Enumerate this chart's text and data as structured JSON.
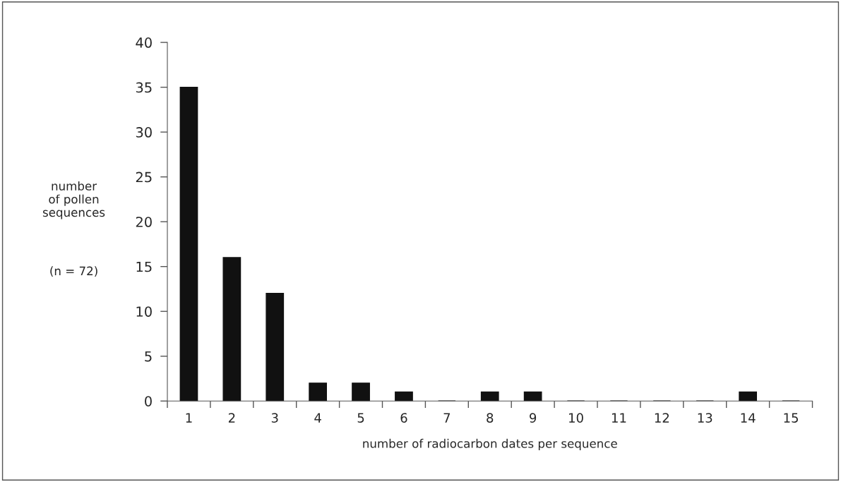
{
  "chart_data": {
    "type": "bar",
    "xlabel": "number of radiocarbon dates per sequence",
    "ylabel": "number\nof pollen\nsequences",
    "annotations": [
      "(n = 72)"
    ],
    "categories": [
      "1",
      "2",
      "3",
      "4",
      "5",
      "6",
      "7",
      "8",
      "9",
      "10",
      "11",
      "12",
      "13",
      "14",
      "15"
    ],
    "values": [
      35,
      16,
      12,
      2,
      2,
      1,
      0,
      1,
      1,
      0,
      0,
      0,
      0,
      1,
      0
    ],
    "color": "#111111",
    "ylim": [
      0,
      40
    ],
    "yticks": [
      0,
      5,
      10,
      15,
      20,
      25,
      30,
      35,
      40
    ],
    "grid": false,
    "legend": false
  }
}
